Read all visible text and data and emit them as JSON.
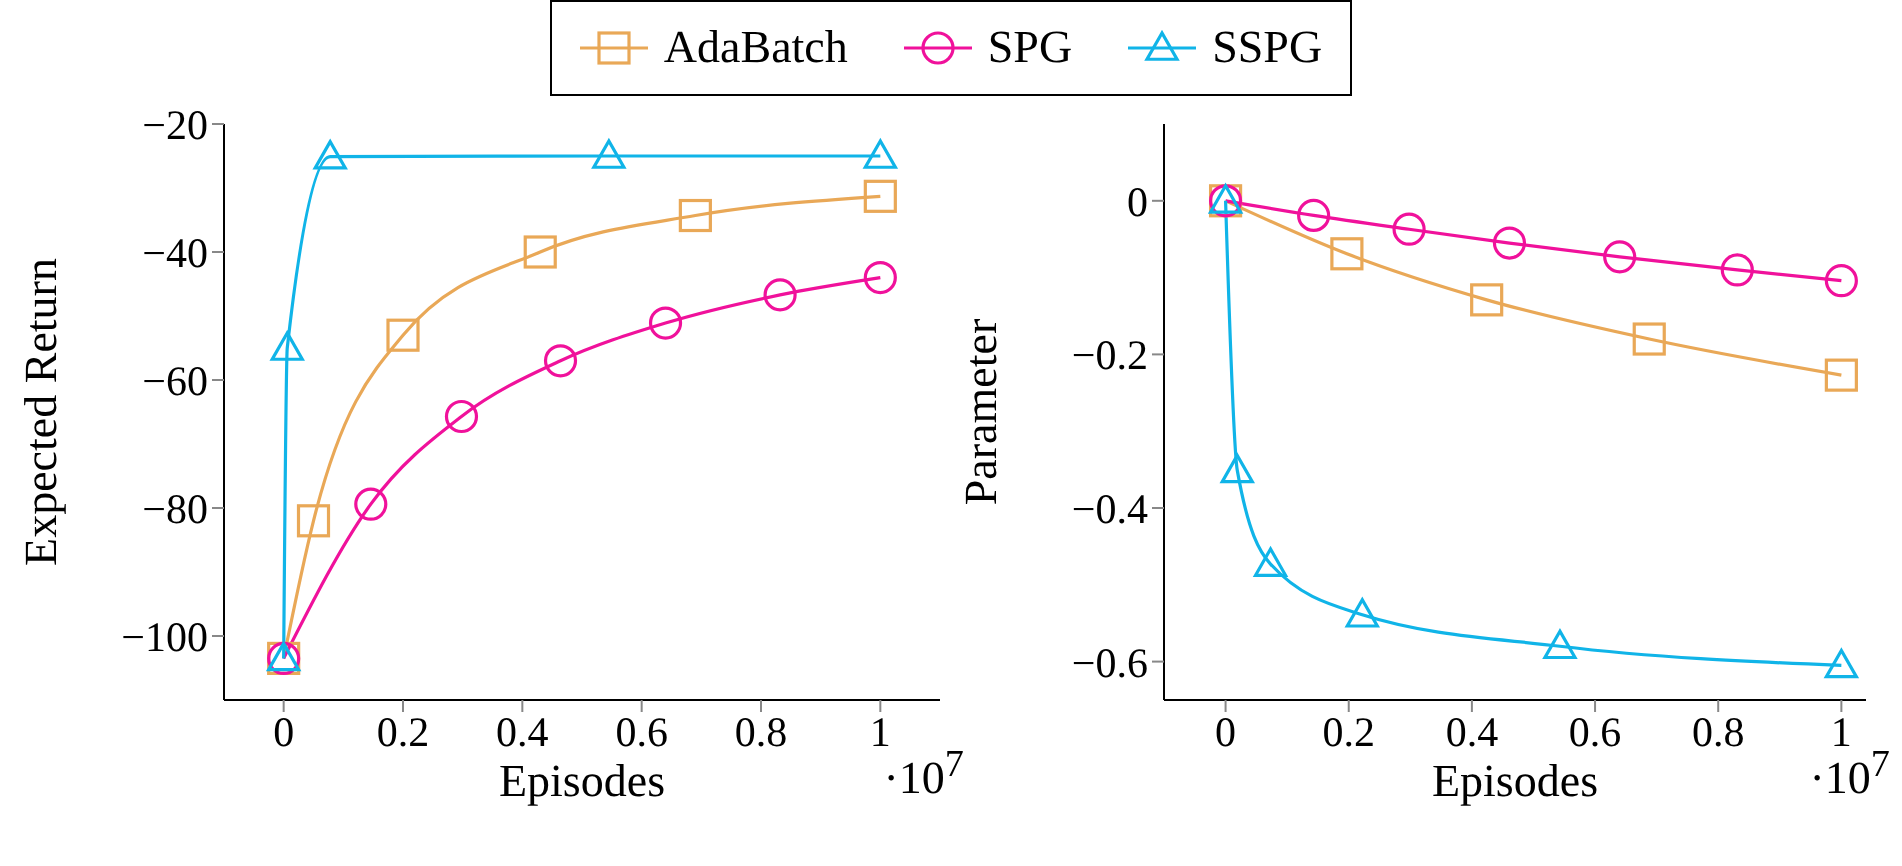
{
  "chart_data": [
    {
      "type": "line",
      "ylabel": "Expected Return",
      "xlabel": "Episodes",
      "annotations": [
        "·10$^{7}$"
      ],
      "xlim": [
        -0.1,
        1.1
      ],
      "xticks": [
        0,
        0.2,
        0.4,
        0.6,
        0.8,
        1
      ],
      "ylim": [
        -110,
        -20
      ],
      "yticks": [
        -100,
        -80,
        -60,
        -40,
        -20
      ],
      "legend": "top",
      "grid": false,
      "series": [
        {
          "type": "line",
          "name": "AdaBatch",
          "marker": "square",
          "color": "#e9a857",
          "x": [
            0,
            0.05,
            0.2,
            0.43,
            0.69,
            1
          ],
          "values": [
            -103.5,
            -82,
            -53,
            -40,
            -34.3,
            -31.3
          ]
        },
        {
          "type": "line",
          "name": "SPG",
          "marker": "circle",
          "color": "#f0119b",
          "x": [
            0,
            0.146,
            0.298,
            0.464,
            0.64,
            0.832,
            1
          ],
          "values": [
            -103.5,
            -79.4,
            -65.7,
            -57,
            -51.1,
            -46.7,
            -44
          ]
        },
        {
          "type": "line",
          "name": "SSPG",
          "marker": "triangle",
          "color": "#10b4e8",
          "x": [
            0,
            0.006,
            0.078,
            0.545,
            1
          ],
          "values": [
            -103.5,
            -55,
            -25.1,
            -25,
            -25
          ]
        }
      ]
    },
    {
      "type": "line",
      "ylabel": "Parameter",
      "xlabel": "Episodes",
      "annotations": [
        "·10$^{7}$"
      ],
      "xlim": [
        -0.1,
        1.04
      ],
      "xticks": [
        0,
        0.2,
        0.4,
        0.6,
        0.8,
        1
      ],
      "ylim": [
        -0.65,
        0.1
      ],
      "yticks": [
        -0.6,
        -0.4,
        -0.2,
        0
      ],
      "grid": false,
      "series": [
        {
          "type": "line",
          "marker": "square",
          "color": "#e9a857",
          "x": [
            0,
            0.197,
            0.424,
            0.688,
            1
          ],
          "values": [
            0,
            -0.069,
            -0.129,
            -0.18,
            -0.227
          ]
        },
        {
          "type": "line",
          "marker": "circle",
          "color": "#f0119b",
          "x": [
            0,
            0.143,
            0.298,
            0.461,
            0.64,
            0.831,
            1
          ],
          "values": [
            0,
            -0.019,
            -0.037,
            -0.055,
            -0.073,
            -0.09,
            -0.104
          ]
        },
        {
          "type": "line",
          "marker": "triangle",
          "color": "#10b4e8",
          "x": [
            0,
            0.019,
            0.073,
            0.222,
            0.543,
            1
          ],
          "values": [
            0,
            -0.351,
            -0.473,
            -0.539,
            -0.58,
            -0.605
          ]
        }
      ]
    }
  ]
}
